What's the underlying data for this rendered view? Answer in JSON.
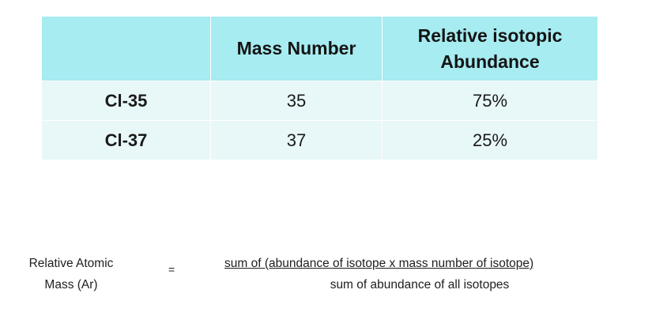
{
  "table": {
    "headers": [
      "",
      "Mass Number",
      "Relative isotopic",
      "Abundance"
    ],
    "rows": [
      {
        "isotope": "Cl-35",
        "mass_number": "35",
        "abundance": "75%"
      },
      {
        "isotope": "Cl-37",
        "mass_number": "37",
        "abundance": "25%"
      }
    ],
    "colors": {
      "header_bg": "#a6ecf1",
      "row_bg": "#e8f7f8"
    }
  },
  "formula": {
    "lhs_line1": "Relative Atomic",
    "lhs_line2": "Mass (Ar)",
    "equals": "=",
    "numerator": "sum of (abundance of isotope x mass number of isotope)",
    "denominator": "sum of abundance of all isotopes"
  }
}
